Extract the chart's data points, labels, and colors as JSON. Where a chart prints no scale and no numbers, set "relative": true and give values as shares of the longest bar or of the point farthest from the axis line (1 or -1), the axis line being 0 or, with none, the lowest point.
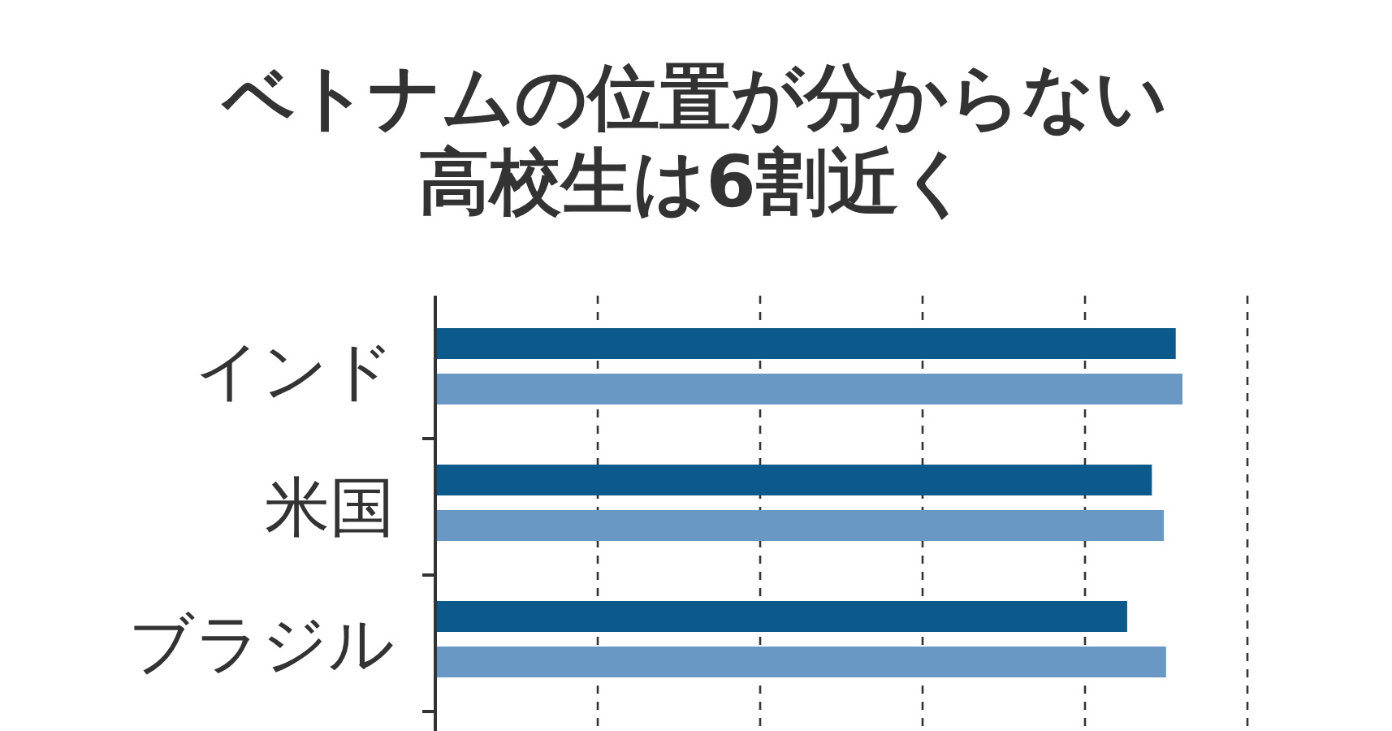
{
  "chart_data": {
    "type": "bar",
    "title": "ベトナムの位置が分からない高校生は6割近く",
    "orientation": "horizontal",
    "relative": true,
    "grid": "x",
    "categories": [
      "インド",
      "米国",
      "ブラジル"
    ],
    "series": [
      {
        "color": "#0c5a8c",
        "values": [
          0.991,
          0.959,
          0.926
        ]
      },
      {
        "color": "#6a98c4",
        "values": [
          1,
          0.975,
          0.978
        ]
      }
    ]
  }
}
